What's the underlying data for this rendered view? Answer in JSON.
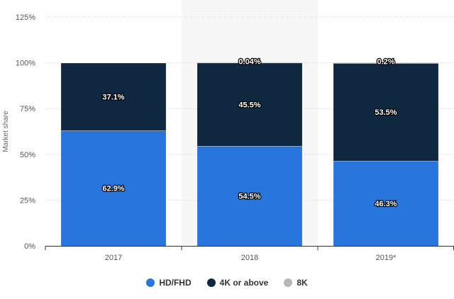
{
  "chart_data": {
    "type": "bar",
    "stacked": true,
    "categories": [
      "2017",
      "2018",
      "2019*"
    ],
    "ylabel": "Market share",
    "ylim": [
      0,
      125
    ],
    "yticks": [
      {
        "value": 0,
        "label": "0%"
      },
      {
        "value": 25,
        "label": "25%"
      },
      {
        "value": 50,
        "label": "50%"
      },
      {
        "value": 75,
        "label": "75%"
      },
      {
        "value": 100,
        "label": "100%"
      },
      {
        "value": 125,
        "label": "125%"
      }
    ],
    "grid": true,
    "legend_position": "bottom",
    "highlighted_category": "2018",
    "series": [
      {
        "name": "HD/FHD",
        "color": "#2876dd",
        "values": [
          62.9,
          54.5,
          46.3
        ],
        "labels": [
          "62.9%",
          "54.5%",
          "46.3%"
        ]
      },
      {
        "name": "4K or above",
        "color": "#0f2840",
        "values": [
          37.1,
          45.5,
          53.5
        ],
        "labels": [
          "37.1%",
          "45.5%",
          "53.5%"
        ]
      },
      {
        "name": "8K",
        "color": "#b8b8b8",
        "values": [
          0,
          0.04,
          0.2
        ],
        "labels": [
          "",
          "0.04%",
          "0.2%"
        ]
      }
    ]
  }
}
